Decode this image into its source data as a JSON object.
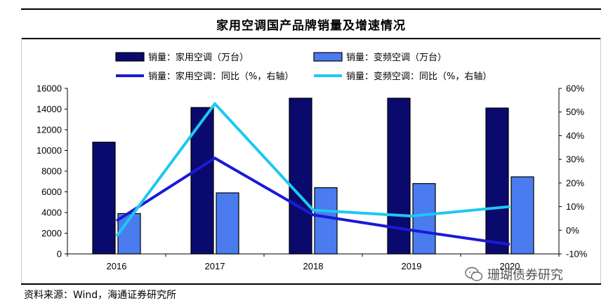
{
  "header": {
    "title": "家用空调国产品牌销量及增速情况"
  },
  "source": "资料来源：Wind，海通证券研究所",
  "watermark": "珊瑚债券研究",
  "colors": {
    "bar1": "#0a0a6e",
    "bar2": "#4a7cf0",
    "line1": "#1a1ad6",
    "line2": "#1ec8f0"
  },
  "chart_data": {
    "type": "bar+line",
    "title": "家用空调国产品牌销量及增速情况",
    "categories": [
      "2016",
      "2017",
      "2018",
      "2019",
      "2020"
    ],
    "left_axis": {
      "min": 0,
      "max": 16000,
      "ticks": [
        "0",
        "2000",
        "4000",
        "6000",
        "8000",
        "10000",
        "12000",
        "14000",
        "16000"
      ]
    },
    "right_axis": {
      "min": -10,
      "max": 60,
      "ticks": [
        "-10%",
        "0%",
        "10%",
        "20%",
        "30%",
        "40%",
        "50%",
        "60%"
      ]
    },
    "bar_series": [
      {
        "name": "销量：家用空调（万台）",
        "values": [
          10800,
          14150,
          15050,
          15050,
          14100
        ]
      },
      {
        "name": "销量：变频空调（万台）",
        "values": [
          3900,
          5900,
          6400,
          6800,
          7450
        ]
      }
    ],
    "line_series": [
      {
        "name": "销量：家用空调：同比（%，右轴）",
        "values": [
          4,
          30.5,
          6.5,
          0,
          -6
        ]
      },
      {
        "name": "销量：变频空调：同比（%，右轴）",
        "values": [
          -2.5,
          53.5,
          8.5,
          6,
          10
        ]
      }
    ],
    "legend_position": "top"
  }
}
